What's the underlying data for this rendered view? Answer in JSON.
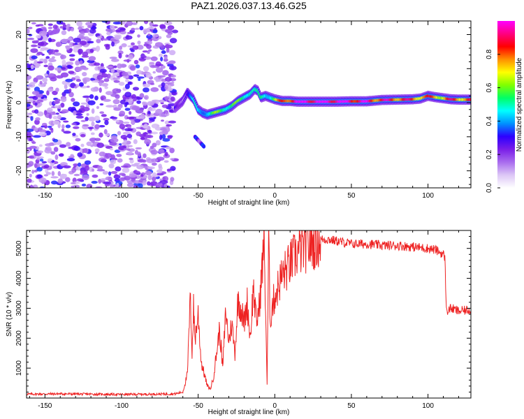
{
  "title": "PAZ1.2026.037.13.46.G25",
  "chart_data": [
    {
      "type": "heatmap",
      "name": "spectrogram",
      "xlabel": "Height of straight line (km)",
      "ylabel": "Frequency (Hz)",
      "xlim": [
        -162,
        128
      ],
      "ylim": [
        -25,
        24
      ],
      "xticks": [
        -150,
        -100,
        -50,
        0,
        50,
        100
      ],
      "yticks": [
        -20,
        -10,
        0,
        10,
        20
      ],
      "colorbar": {
        "label": "Normalized spectral amplitude",
        "range": [
          0,
          1
        ],
        "ticks": [
          0.0,
          0.2,
          0.4,
          0.6,
          0.8
        ],
        "tick_labels": [
          "0.0",
          "0.2",
          "0.4",
          "0.6",
          "0.8"
        ],
        "colors": [
          "#ffffff",
          "#dcc6f6",
          "#a96cee",
          "#7a1ee8",
          "#2d00ff",
          "#0090ff",
          "#00ffff",
          "#00ff66",
          "#7fff00",
          "#ffff00",
          "#ff9000",
          "#ff0000",
          "#ff0080",
          "#ff00ff"
        ]
      },
      "noise_region": {
        "x_from": -162,
        "x_to": -65,
        "freq_from": -25,
        "freq_to": 24
      },
      "ridge": {
        "x": [
          -65,
          -60,
          -57,
          -53,
          -50,
          -47,
          -44,
          -40,
          -36,
          -32,
          -28,
          -24,
          -20,
          -16,
          -13,
          -11,
          -9,
          -6,
          -3,
          0,
          5,
          10,
          15,
          20,
          30,
          40,
          50,
          60,
          70,
          80,
          90,
          95,
          100,
          105,
          110,
          115,
          120,
          128
        ],
        "freq": [
          -1.5,
          0.5,
          3.0,
          1.0,
          -2.0,
          -3.0,
          -3.5,
          -3.0,
          -2.5,
          -2.0,
          -1.0,
          0.5,
          1.5,
          2.5,
          4.0,
          3.5,
          1.5,
          2.0,
          1.5,
          1.0,
          0.5,
          0.5,
          0.3,
          0.3,
          0.3,
          0.3,
          0.4,
          0.4,
          0.8,
          0.9,
          1.0,
          1.2,
          2.0,
          1.6,
          1.3,
          1.0,
          0.9,
          0.9
        ],
        "amplitude": [
          0.2,
          0.25,
          0.3,
          0.35,
          0.4,
          0.45,
          0.5,
          0.5,
          0.55,
          0.6,
          0.55,
          0.5,
          0.55,
          0.6,
          0.45,
          0.4,
          0.45,
          0.5,
          0.55,
          0.6,
          0.75,
          0.9,
          1.0,
          1.0,
          1.0,
          1.0,
          0.95,
          0.9,
          0.85,
          0.85,
          0.8,
          0.8,
          0.75,
          0.75,
          0.75,
          0.8,
          0.8,
          0.8
        ]
      },
      "side_branch": {
        "x": [
          -52,
          -46
        ],
        "freq": [
          -10,
          -13
        ],
        "amplitude": 0.35
      }
    },
    {
      "type": "line",
      "name": "snr",
      "xlabel": "Height of straight line (km)",
      "ylabel": "SNR (10 * v/v)",
      "xlim": [
        -162,
        128
      ],
      "ylim": [
        0,
        5600
      ],
      "xticks": [
        -150,
        -100,
        -50,
        0,
        50,
        100
      ],
      "yticks": [
        1000,
        2000,
        3000,
        4000,
        5000
      ],
      "color": "#ee2222",
      "series": [
        {
          "name": "SNR",
          "x": [
            -162,
            -140,
            -120,
            -100,
            -80,
            -65,
            -60,
            -57,
            -56,
            -55,
            -54,
            -53,
            -52,
            -50,
            -48,
            -46,
            -44,
            -42,
            -40,
            -38,
            -36,
            -34,
            -32,
            -30,
            -28,
            -26,
            -24,
            -22,
            -20,
            -18,
            -16,
            -14,
            -12,
            -10,
            -8,
            -7,
            -6,
            -5,
            -4,
            -3,
            -2,
            0,
            2,
            4,
            6,
            8,
            10,
            14,
            18,
            22,
            26,
            30,
            35,
            40,
            45,
            50,
            60,
            70,
            80,
            90,
            100,
            105,
            110,
            111,
            112,
            115,
            120,
            128
          ],
          "y": [
            130,
            140,
            130,
            120,
            130,
            140,
            200,
            800,
            2200,
            3400,
            1500,
            3000,
            2000,
            2800,
            1200,
            800,
            400,
            300,
            700,
            1500,
            2300,
            1000,
            2900,
            1900,
            2500,
            1500,
            3300,
            3000,
            2500,
            3200,
            2000,
            3700,
            2500,
            3100,
            4500,
            5300,
            3000,
            450,
            5300,
            2500,
            3000,
            3400,
            3700,
            4000,
            4200,
            4300,
            4500,
            4800,
            5000,
            5100,
            5200,
            5300,
            5300,
            5250,
            5200,
            5150,
            5150,
            5100,
            5100,
            5050,
            5000,
            4950,
            4800,
            4700,
            2900,
            3000,
            2900,
            2950
          ]
        }
      ]
    }
  ]
}
